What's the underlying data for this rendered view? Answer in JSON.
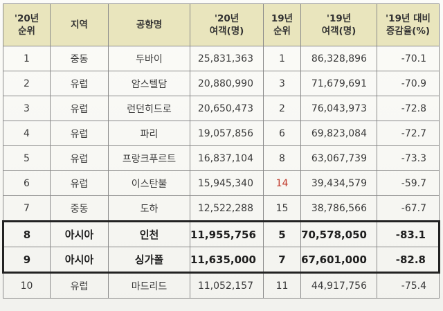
{
  "table": {
    "headers": {
      "rank20": [
        "'20년",
        "순위"
      ],
      "region": [
        "지역"
      ],
      "airport": [
        "공항명"
      ],
      "pax20": [
        "'20년",
        "여객(명)"
      ],
      "rank19": [
        "19년",
        "순위"
      ],
      "pax19": [
        "'19년",
        "여객(명)"
      ],
      "change": [
        "'19년 대비",
        "증감율(%)"
      ]
    },
    "rows": [
      {
        "rank20": "1",
        "region": "중동",
        "airport": "두바이",
        "pax20": "25,831,363",
        "rank19": "1",
        "pax19": "86,328,896",
        "change": "-70.1"
      },
      {
        "rank20": "2",
        "region": "유럽",
        "airport": "암스텔담",
        "pax20": "20,880,990",
        "rank19": "3",
        "pax19": "71,679,691",
        "change": "-70.9"
      },
      {
        "rank20": "3",
        "region": "유럽",
        "airport": "런던히드로",
        "pax20": "20,650,473",
        "rank19": "2",
        "pax19": "76,043,973",
        "change": "-72.8"
      },
      {
        "rank20": "4",
        "region": "유럽",
        "airport": "파리",
        "pax20": "19,057,856",
        "rank19": "6",
        "pax19": "69,823,084",
        "change": "-72.7"
      },
      {
        "rank20": "5",
        "region": "유럽",
        "airport": "프랑크푸르트",
        "pax20": "16,837,104",
        "rank19": "8",
        "pax19": "63,067,739",
        "change": "-73.3"
      },
      {
        "rank20": "6",
        "region": "유럽",
        "airport": "이스탄불",
        "pax20": "15,945,340",
        "rank19": "14",
        "pax19": "39,434,579",
        "change": "-59.7"
      },
      {
        "rank20": "7",
        "region": "중동",
        "airport": "도하",
        "pax20": "12,522,288",
        "rank19": "15",
        "pax19": "38,786,566",
        "change": "-67.7"
      },
      {
        "rank20": "8",
        "region": "아시아",
        "airport": "인천",
        "pax20": "11,955,756",
        "rank19": "5",
        "pax19": "70,578,050",
        "change": "-83.1"
      },
      {
        "rank20": "9",
        "region": "아시아",
        "airport": "싱가폴",
        "pax20": "11,635,000",
        "rank19": "7",
        "pax19": "67,601,000",
        "change": "-82.8"
      },
      {
        "rank20": "10",
        "region": "유럽",
        "airport": "마드리드",
        "pax20": "11,052,157",
        "rank19": "11",
        "pax19": "44,917,756",
        "change": "-75.4"
      }
    ]
  },
  "colors": {
    "header_bg": "#e9e5bd",
    "highlight_border": "#222222",
    "rank19_emphasis": "#c0392b"
  }
}
